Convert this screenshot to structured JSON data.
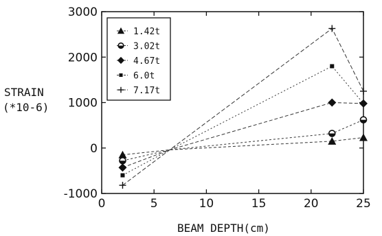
{
  "chart_data": {
    "type": "line",
    "title": "",
    "xlabel": "BEAM DEPTH(cm)",
    "ylabel_line1": "STRAIN",
    "ylabel_line2": "(*10-6)",
    "xlim": [
      0,
      25
    ],
    "ylim": [
      -1000,
      3000
    ],
    "xticks": [
      0,
      5,
      10,
      15,
      20,
      25
    ],
    "yticks": [
      -1000,
      0,
      1000,
      2000,
      3000
    ],
    "xtick_labels": [
      "0",
      "5",
      "10",
      "15",
      "20",
      "25"
    ],
    "ytick_labels": [
      "-1000",
      "0",
      "1000",
      "2000",
      "3000"
    ],
    "legend_position": "top-left",
    "grid": false,
    "series": [
      {
        "name": "1.42t",
        "marker": "triangle",
        "x": [
          2,
          6.5,
          22,
          25
        ],
        "y": [
          -150,
          -40,
          150,
          230
        ]
      },
      {
        "name": "3.02t",
        "marker": "half-circle",
        "x": [
          2,
          6.5,
          22,
          25
        ],
        "y": [
          -280,
          -40,
          320,
          620
        ]
      },
      {
        "name": "4.67t",
        "marker": "diamond",
        "x": [
          2,
          6.5,
          22,
          25
        ],
        "y": [
          -430,
          -40,
          1000,
          980
        ]
      },
      {
        "name": "6.0t",
        "marker": "square",
        "x": [
          2,
          6.5,
          22,
          25
        ],
        "y": [
          -600,
          -40,
          1800,
          980
        ]
      },
      {
        "name": "7.17t",
        "marker": "plus",
        "x": [
          2,
          6.5,
          22,
          25
        ],
        "y": [
          -820,
          -40,
          2630,
          1250
        ]
      }
    ]
  }
}
